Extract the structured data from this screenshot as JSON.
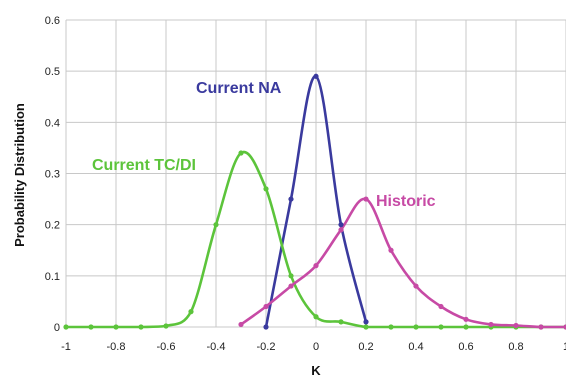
{
  "chart_data": {
    "type": "line",
    "title": "",
    "xlabel": "K",
    "ylabel": "Probability Distribution",
    "xlim": [
      -1,
      1
    ],
    "ylim": [
      0,
      0.6
    ],
    "xticks": [
      "-1",
      "-0.8",
      "-0.6",
      "-0.4",
      "-0.2",
      "0",
      "0.2",
      "0.4",
      "0.6",
      "0.8",
      "1"
    ],
    "yticks": [
      "0",
      "0.1",
      "0.2",
      "0.3",
      "0.4",
      "0.5",
      "0.6"
    ],
    "grid": true,
    "legend": "none",
    "series": [
      {
        "name": "Current NA",
        "color": "#3a3a9e",
        "x": [
          -0.2,
          -0.1,
          0.0,
          0.1,
          0.2
        ],
        "y": [
          0.0,
          0.25,
          0.49,
          0.2,
          0.01
        ]
      },
      {
        "name": "Current TC/DI",
        "color": "#5cc43b",
        "x": [
          -1.0,
          -0.9,
          -0.8,
          -0.7,
          -0.6,
          -0.5,
          -0.4,
          -0.3,
          -0.2,
          -0.1,
          0.0,
          0.1,
          0.2,
          0.3,
          0.4,
          0.5,
          0.6,
          0.7,
          0.8,
          0.9,
          1.0
        ],
        "y": [
          0.0,
          0.0,
          0.0,
          0.0,
          0.002,
          0.03,
          0.2,
          0.34,
          0.27,
          0.1,
          0.02,
          0.01,
          0.0,
          0.0,
          0.0,
          0.0,
          0.0,
          0.0,
          0.0,
          0.0,
          0.0
        ]
      },
      {
        "name": "Historic",
        "color": "#c74aa5",
        "x": [
          -0.3,
          -0.2,
          -0.1,
          0.0,
          0.1,
          0.2,
          0.3,
          0.4,
          0.5,
          0.6,
          0.7,
          0.8,
          0.9,
          1.0
        ],
        "y": [
          0.005,
          0.04,
          0.08,
          0.12,
          0.19,
          0.25,
          0.15,
          0.08,
          0.04,
          0.015,
          0.005,
          0.003,
          0.0,
          0.0
        ]
      }
    ]
  }
}
